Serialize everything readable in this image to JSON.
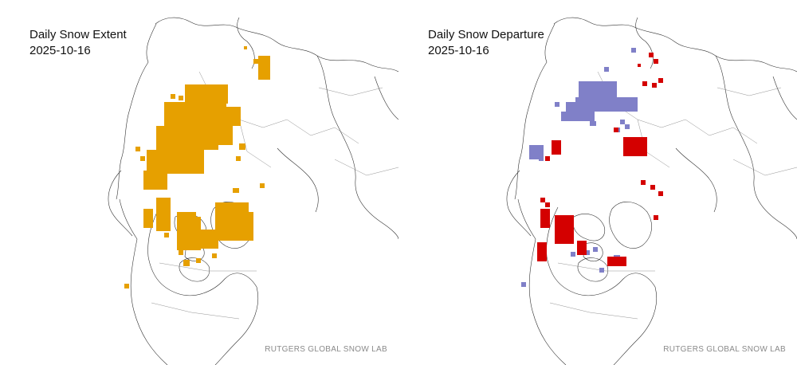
{
  "panels": [
    {
      "title": "Daily Snow Extent",
      "date": "2025-10-16",
      "credit": "RUTGERS GLOBAL SNOW LAB",
      "legend_colors": {
        "snow": "#E6A000"
      }
    },
    {
      "title": "Daily Snow Departure",
      "date": "2025-10-16",
      "credit": "RUTGERS GLOBAL SNOW LAB",
      "legend_colors": {
        "above_normal": "#8080C8",
        "below_normal": "#D40000"
      }
    }
  ]
}
